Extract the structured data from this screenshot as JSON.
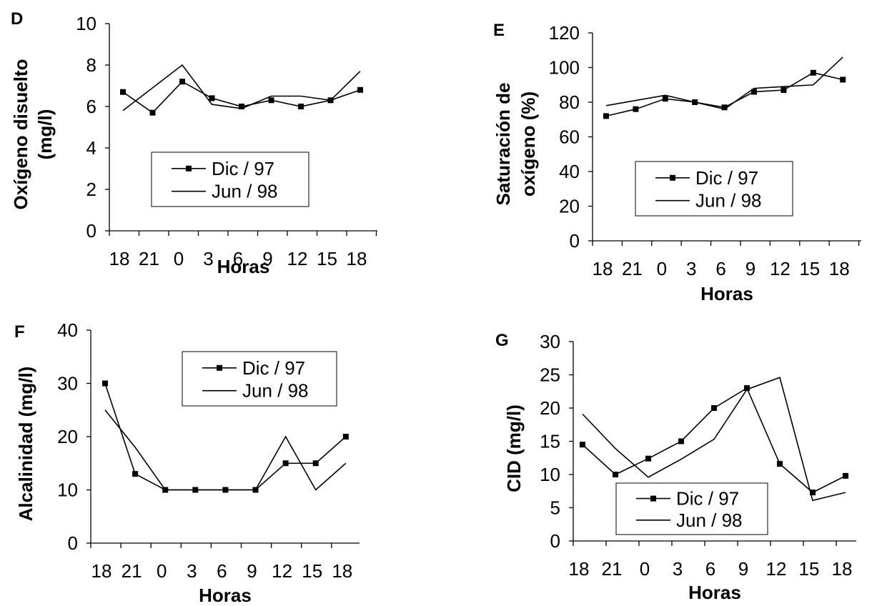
{
  "chart_data": [
    {
      "type": "line",
      "panel": "D",
      "x": [
        "18",
        "21",
        "0",
        "3",
        "6",
        "9",
        "12",
        "15",
        "18"
      ],
      "xlabel": "Horas",
      "ylabel": [
        "Oxígeno disuelto",
        "(mg/l)"
      ],
      "ylim": [
        0,
        10
      ],
      "yticks": [
        0,
        2,
        4,
        6,
        8,
        10
      ],
      "series": [
        {
          "name": "Dic / 97",
          "marker": "square",
          "values": [
            6.7,
            5.7,
            7.2,
            6.4,
            6.0,
            6.3,
            6.0,
            6.3,
            6.8
          ]
        },
        {
          "name": "Jun / 98",
          "marker": "none",
          "values": [
            5.8,
            6.9,
            8.0,
            6.1,
            5.9,
            6.5,
            6.5,
            6.3,
            7.7
          ]
        }
      ],
      "legend_position": "center"
    },
    {
      "type": "line",
      "panel": "E",
      "x": [
        "18",
        "21",
        "0",
        "3",
        "6",
        "9",
        "12",
        "15",
        "18"
      ],
      "xlabel": "Horas",
      "ylabel": [
        "Saturación de",
        "oxígeno  (%)"
      ],
      "ylim": [
        0,
        120
      ],
      "yticks": [
        0,
        20,
        40,
        60,
        80,
        100,
        120
      ],
      "series": [
        {
          "name": "Dic / 97",
          "marker": "square",
          "values": [
            72,
            76,
            82,
            80,
            77,
            86,
            87,
            97,
            93
          ]
        },
        {
          "name": "Jun / 98",
          "marker": "none",
          "values": [
            78,
            81,
            84,
            80,
            76,
            88,
            89,
            90,
            106
          ]
        }
      ],
      "legend_position": "center"
    },
    {
      "type": "line",
      "panel": "F",
      "x": [
        "18",
        "21",
        "0",
        "3",
        "6",
        "9",
        "12",
        "15",
        "18"
      ],
      "xlabel": "Horas",
      "ylabel": [
        "Alcalinidad  (mg/l)"
      ],
      "ylim": [
        0,
        40
      ],
      "yticks": [
        0,
        10,
        20,
        30,
        40
      ],
      "series": [
        {
          "name": "Dic / 97",
          "marker": "square",
          "values": [
            30,
            13,
            10,
            10,
            10,
            10,
            15,
            15,
            20
          ]
        },
        {
          "name": "Jun / 98",
          "marker": "none",
          "values": [
            25,
            18,
            10,
            10,
            10,
            10,
            20,
            10,
            15
          ]
        }
      ],
      "legend_position": "top-right"
    },
    {
      "type": "line",
      "panel": "G",
      "x": [
        "18",
        "21",
        "0",
        "3",
        "6",
        "9",
        "12",
        "15",
        "18"
      ],
      "xlabel": "Horas",
      "ylabel": [
        "CID  (mg/l)"
      ],
      "ylim": [
        0,
        30
      ],
      "yticks": [
        0,
        5,
        10,
        15,
        20,
        25,
        30
      ],
      "series": [
        {
          "name": "Dic / 97",
          "marker": "square",
          "values": [
            14.5,
            10,
            12.4,
            15,
            20,
            23,
            11.6,
            7.3,
            9.8
          ]
        },
        {
          "name": "Jun / 98",
          "marker": "none",
          "values": [
            19.1,
            13.9,
            9.6,
            12.3,
            15.3,
            22.8,
            24.6,
            6.1,
            7.3
          ]
        }
      ],
      "legend_position": "bottom-left"
    }
  ]
}
